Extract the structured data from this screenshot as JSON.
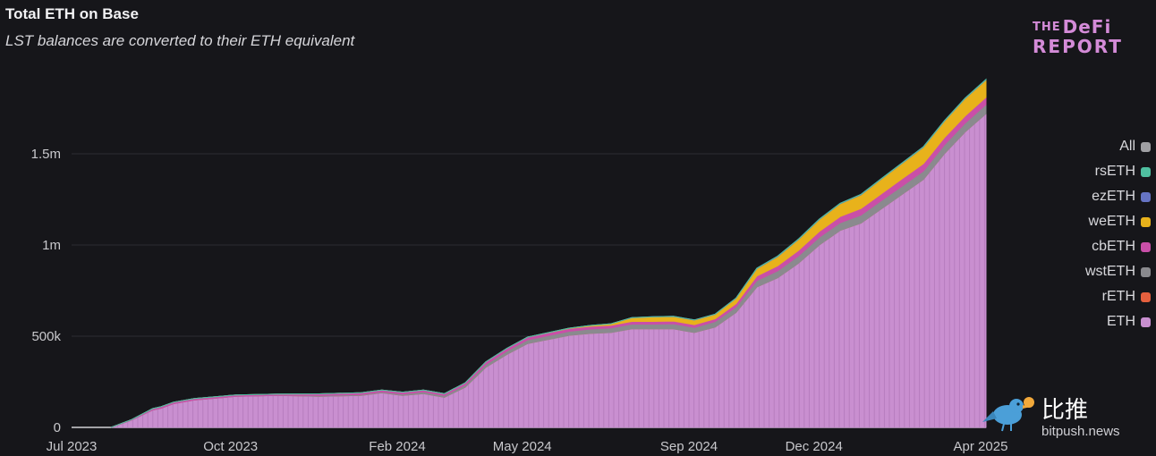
{
  "header": {
    "title": "Total ETH on Base",
    "subtitle": "LST balances are converted to their ETH equivalent"
  },
  "logo": {
    "line1_prefix": "THE",
    "line1_main": "DeFi",
    "line2": "REPORT"
  },
  "watermark": {
    "chinese": "比推",
    "url": "bitpush.news"
  },
  "colors": {
    "background": "#16161a",
    "ETH": "#c98fd0",
    "rETH": "#e5603e",
    "wstETH": "#8a8a8e",
    "cbETH": "#c94fa8",
    "weETH": "#e8b21b",
    "ezETH": "#6674c4",
    "rsETH": "#4fbfa0",
    "All": "#a0a0a4"
  },
  "chart_data": {
    "type": "area",
    "stacked": true,
    "title": "Total ETH on Base",
    "subtitle": "LST balances are converted to their ETH equivalent",
    "xlabel": "",
    "ylabel": "",
    "ylim": [
      0,
      2000000
    ],
    "y_ticks": [
      0,
      500000,
      1000000,
      1500000
    ],
    "y_tick_labels": [
      "0",
      "500k",
      "1m",
      "1.5m"
    ],
    "x_range": [
      "2023-07",
      "2025-04"
    ],
    "x_ticks": [
      "Jul 2023",
      "Oct 2023",
      "Feb 2024",
      "May 2024",
      "Sep 2024",
      "Dec 2024",
      "Apr 2025"
    ],
    "x_tick_months": [
      0,
      3,
      7,
      10,
      14,
      17,
      21
    ],
    "grid": true,
    "legend_position": "right",
    "legend": [
      "All",
      "rsETH",
      "ezETH",
      "weETH",
      "cbETH",
      "wstETH",
      "rETH",
      "ETH"
    ],
    "x": [
      0.0,
      0.5,
      1.0,
      1.2,
      1.5,
      2.0,
      2.5,
      3.0,
      4.0,
      5.0,
      6.0,
      6.5,
      7.0,
      7.5,
      8.0,
      8.5,
      9.0,
      9.5,
      10.0,
      11.0,
      11.5,
      12.0,
      12.5,
      13.0,
      13.5,
      14.0,
      14.5,
      15.0,
      15.5,
      16.0,
      16.5,
      17.0,
      17.5,
      18.0,
      18.5,
      19.0,
      19.5,
      20.0,
      20.5,
      21.0
    ],
    "series": [
      {
        "name": "ETH",
        "values": [
          0,
          40000,
          95000,
          105000,
          130000,
          150000,
          160000,
          170000,
          175000,
          170000,
          175000,
          190000,
          175000,
          185000,
          165000,
          220000,
          330000,
          400000,
          460000,
          505000,
          515000,
          520000,
          540000,
          540000,
          540000,
          520000,
          550000,
          630000,
          770000,
          820000,
          900000,
          1000000,
          1080000,
          1120000,
          1200000,
          1280000,
          1360000,
          1500000,
          1620000,
          1720000
        ]
      },
      {
        "name": "rETH",
        "values": [
          0,
          0,
          0,
          0,
          0,
          0,
          0,
          0,
          0,
          0,
          0,
          0,
          0,
          0,
          0,
          0,
          0,
          0,
          0,
          0,
          0,
          0,
          0,
          0,
          0,
          0,
          0,
          0,
          0,
          0,
          0,
          0,
          0,
          0,
          0,
          0,
          0,
          0,
          0,
          0
        ]
      },
      {
        "name": "wstETH",
        "values": [
          0,
          0,
          0,
          0,
          0,
          0,
          0,
          0,
          0,
          5000,
          5000,
          5000,
          8000,
          10000,
          10000,
          12000,
          15000,
          18000,
          20000,
          22000,
          24000,
          25000,
          26000,
          26000,
          28000,
          28000,
          30000,
          30000,
          35000,
          38000,
          40000,
          42000,
          42000,
          44000,
          45000,
          45000,
          46000,
          48000,
          48000,
          50000
        ]
      },
      {
        "name": "cbETH",
        "values": [
          0,
          3000,
          8000,
          8000,
          8000,
          8000,
          8000,
          8000,
          8000,
          9000,
          10000,
          10000,
          10000,
          10000,
          10000,
          12000,
          15000,
          15000,
          15000,
          15000,
          15000,
          15000,
          15000,
          15000,
          15000,
          15000,
          15000,
          18000,
          25000,
          28000,
          30000,
          32000,
          34000,
          36000,
          38000,
          40000,
          40000,
          40000,
          40000,
          40000
        ]
      },
      {
        "name": "weETH",
        "values": [
          0,
          0,
          0,
          0,
          0,
          0,
          0,
          0,
          0,
          0,
          0,
          0,
          0,
          0,
          0,
          0,
          0,
          0,
          0,
          2000,
          5000,
          8000,
          20000,
          25000,
          25000,
          25000,
          25000,
          30000,
          40000,
          50000,
          60000,
          65000,
          70000,
          75000,
          80000,
          85000,
          90000,
          90000,
          95000,
          95000
        ]
      },
      {
        "name": "ezETH",
        "values": [
          0,
          0,
          0,
          0,
          0,
          0,
          0,
          0,
          0,
          0,
          0,
          0,
          0,
          0,
          0,
          0,
          0,
          0,
          0,
          0,
          0,
          0,
          1000,
          1000,
          1000,
          1000,
          1000,
          1000,
          2000,
          2000,
          2000,
          2000,
          2000,
          2000,
          2000,
          2000,
          2000,
          2000,
          2000,
          2000
        ]
      },
      {
        "name": "rsETH",
        "values": [
          0,
          0,
          0,
          0,
          0,
          0,
          0,
          0,
          0,
          0,
          0,
          0,
          0,
          0,
          0,
          0,
          0,
          0,
          0,
          0,
          0,
          0,
          0,
          0,
          0,
          0,
          0,
          0,
          1000,
          1000,
          1000,
          1000,
          1000,
          1000,
          1000,
          1000,
          1000,
          1000,
          1000,
          1000
        ]
      }
    ]
  }
}
